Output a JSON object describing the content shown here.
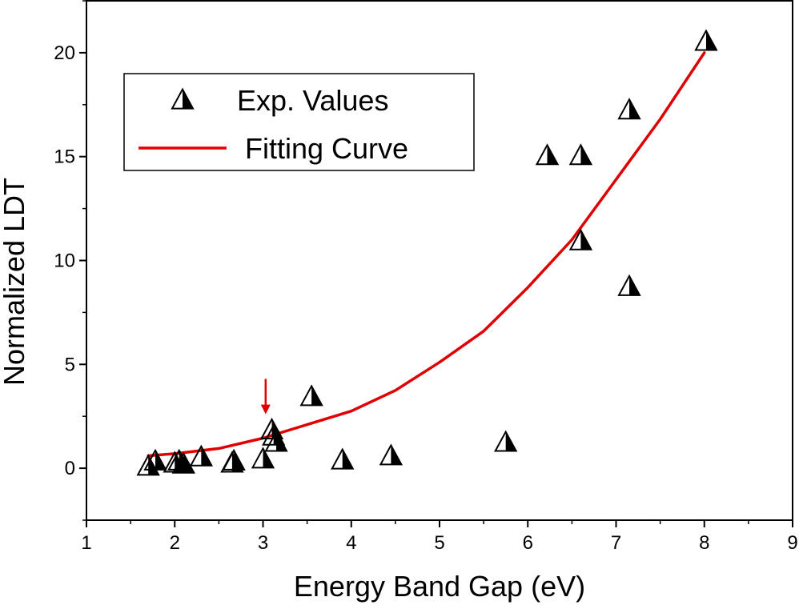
{
  "chart_data": {
    "type": "scatter",
    "xlabel": "Energy Band Gap (eV)",
    "ylabel": "Normalized LDT",
    "xlim": [
      1,
      9
    ],
    "ylim": [
      -2.5,
      22.5
    ],
    "xticks": [
      1,
      2,
      3,
      4,
      5,
      6,
      7,
      8,
      9
    ],
    "yticks": [
      0,
      5,
      10,
      15,
      20
    ],
    "x_tick_labels": [
      "1",
      "2",
      "3",
      "4",
      "5",
      "6",
      "7",
      "8",
      "9"
    ],
    "y_tick_labels": [
      "0",
      "5",
      "10",
      "15",
      "20"
    ],
    "grid": false,
    "legend_position": "top-left",
    "series": [
      {
        "name": "Exp. Values",
        "kind": "scatter",
        "marker": "half-filled-triangle",
        "color": "#000000",
        "points": [
          [
            1.7,
            0.05
          ],
          [
            1.78,
            0.3
          ],
          [
            2.0,
            0.2
          ],
          [
            2.05,
            0.3
          ],
          [
            2.1,
            0.15
          ],
          [
            2.3,
            0.5
          ],
          [
            2.65,
            0.2
          ],
          [
            2.67,
            0.3
          ],
          [
            3.0,
            0.4
          ],
          [
            3.1,
            1.8
          ],
          [
            3.12,
            1.5
          ],
          [
            3.15,
            1.2
          ],
          [
            3.55,
            3.4
          ],
          [
            3.9,
            0.35
          ],
          [
            4.45,
            0.55
          ],
          [
            5.75,
            1.2
          ],
          [
            6.22,
            15.0
          ],
          [
            6.6,
            15.0
          ],
          [
            6.6,
            10.9
          ],
          [
            7.15,
            17.2
          ],
          [
            7.15,
            8.7
          ],
          [
            8.02,
            20.5
          ]
        ]
      },
      {
        "name": "Fitting Curve",
        "kind": "line",
        "color": "#e00000",
        "points": [
          [
            1.7,
            0.6
          ],
          [
            2.0,
            0.7
          ],
          [
            2.5,
            0.95
          ],
          [
            3.0,
            1.45
          ],
          [
            3.5,
            2.1
          ],
          [
            4.0,
            2.75
          ],
          [
            4.5,
            3.75
          ],
          [
            5.0,
            5.1
          ],
          [
            5.5,
            6.6
          ],
          [
            6.0,
            8.7
          ],
          [
            6.5,
            11.0
          ],
          [
            7.0,
            13.9
          ],
          [
            7.5,
            16.8
          ],
          [
            8.0,
            20.0
          ]
        ]
      }
    ],
    "annotations": [
      {
        "type": "arrow",
        "direction": "down",
        "color": "#e00000",
        "x": 3.03,
        "y_from": 4.3,
        "y_to": 2.6
      }
    ]
  }
}
